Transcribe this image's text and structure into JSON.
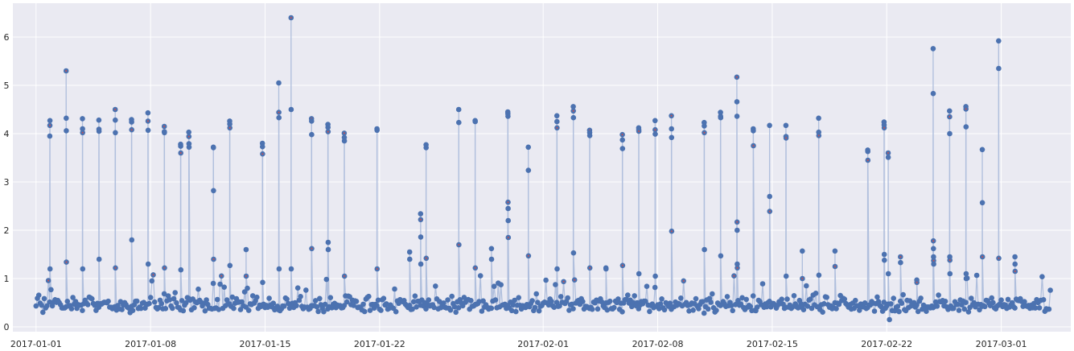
{
  "chart_data": {
    "type": "line",
    "style": {
      "background": "#eaeaf2",
      "grid_color": "#ffffff",
      "line_color": "#b0bfdd",
      "marker_color": "#4c72b0",
      "accent_marker_color": "#c44e52",
      "grid": true
    },
    "x_axis": {
      "type": "date",
      "range": [
        "2016-12-30T14:00",
        "2017-03-05T06:00"
      ],
      "ticks": [
        "2017-01-01",
        "2017-01-08",
        "2017-01-15",
        "2017-01-22",
        "2017-02-01",
        "2017-02-08",
        "2017-02-15",
        "2017-02-22",
        "2017-03-01"
      ]
    },
    "y_axis": {
      "range": [
        -0.1,
        6.7
      ],
      "ticks": [
        0,
        1,
        2,
        3,
        4,
        5,
        6
      ]
    },
    "baseline": {
      "start": "2017-01-01",
      "end": "2017-03-04",
      "step_hours": 2,
      "low": 0.28,
      "high": 0.72,
      "noise_points": 0.9
    },
    "spikes": [
      {
        "date": "2017-01-01T20:00",
        "values": [
          3.95,
          4.17,
          4.27,
          1.2
        ]
      },
      {
        "date": "2017-01-02T20:00",
        "values": [
          5.3,
          4.32,
          4.06,
          1.34
        ]
      },
      {
        "date": "2017-01-03T20:00",
        "values": [
          4.31,
          4.1,
          4.02,
          1.2
        ]
      },
      {
        "date": "2017-01-04T20:00",
        "values": [
          4.28,
          4.09,
          4.05,
          1.4
        ]
      },
      {
        "date": "2017-01-05T20:00",
        "values": [
          4.5,
          4.28,
          4.02,
          1.22
        ]
      },
      {
        "date": "2017-01-06T20:00",
        "values": [
          4.29,
          4.24,
          4.08,
          1.8
        ]
      },
      {
        "date": "2017-01-07T20:00",
        "values": [
          4.43,
          4.26,
          4.07,
          1.3
        ]
      },
      {
        "date": "2017-01-08T20:00",
        "values": [
          4.15,
          4.04,
          4.02,
          1.22
        ]
      },
      {
        "date": "2017-01-09T20:00",
        "values": [
          3.78,
          3.74,
          3.6,
          1.18
        ]
      },
      {
        "date": "2017-01-10T08:00",
        "values": [
          4.03,
          3.94,
          3.79,
          3.72
        ]
      },
      {
        "date": "2017-01-11T20:00",
        "values": [
          3.72,
          3.71,
          2.82,
          1.4
        ]
      },
      {
        "date": "2017-01-12T20:00",
        "values": [
          4.26,
          4.2,
          4.12,
          1.27
        ]
      },
      {
        "date": "2017-01-13T20:00",
        "values": [
          1.6,
          1.05
        ]
      },
      {
        "date": "2017-01-14T20:00",
        "values": [
          3.8,
          3.73,
          3.58,
          0.92
        ]
      },
      {
        "date": "2017-01-15T20:00",
        "values": [
          5.05,
          4.44,
          4.33,
          1.2
        ]
      },
      {
        "date": "2017-01-16T14:00",
        "values": [
          6.4,
          4.5,
          1.2
        ]
      },
      {
        "date": "2017-01-17T20:00",
        "values": [
          4.31,
          4.26,
          3.98,
          1.62
        ]
      },
      {
        "date": "2017-01-18T20:00",
        "values": [
          4.19,
          4.13,
          4.04,
          1.75,
          1.6
        ]
      },
      {
        "date": "2017-01-19T20:00",
        "values": [
          4.01,
          3.92,
          3.85,
          1.05
        ]
      },
      {
        "date": "2017-01-21T20:00",
        "values": [
          4.1,
          4.07,
          1.2
        ]
      },
      {
        "date": "2017-01-23T20:00",
        "values": [
          1.55,
          1.4
        ]
      },
      {
        "date": "2017-01-24T12:00",
        "values": [
          2.34,
          2.22,
          1.86,
          1.3
        ]
      },
      {
        "date": "2017-01-24T20:00",
        "values": [
          3.77,
          3.71,
          1.42
        ]
      },
      {
        "date": "2017-01-26T20:00",
        "values": [
          4.5,
          4.23,
          1.7
        ]
      },
      {
        "date": "2017-01-27T20:00",
        "values": [
          4.27,
          4.25,
          1.22
        ]
      },
      {
        "date": "2017-01-28T20:00",
        "values": [
          1.62,
          1.4
        ]
      },
      {
        "date": "2017-01-29T20:00",
        "values": [
          4.45,
          4.41,
          4.36,
          2.58,
          2.45,
          2.2,
          1.85
        ]
      },
      {
        "date": "2017-01-31T02:00",
        "values": [
          3.72,
          3.24,
          1.47
        ]
      },
      {
        "date": "2017-02-01T20:00",
        "values": [
          4.37,
          4.25,
          4.12,
          1.2
        ]
      },
      {
        "date": "2017-02-02T20:00",
        "values": [
          4.56,
          4.47,
          4.33,
          1.53
        ]
      },
      {
        "date": "2017-02-03T20:00",
        "values": [
          4.07,
          4.02,
          3.96,
          1.22
        ]
      },
      {
        "date": "2017-02-04T20:00",
        "values": [
          1.22,
          1.2
        ]
      },
      {
        "date": "2017-02-05T20:00",
        "values": [
          3.98,
          3.87,
          3.69,
          1.27
        ]
      },
      {
        "date": "2017-02-06T20:00",
        "values": [
          4.12,
          4.08,
          4.05,
          1.1
        ]
      },
      {
        "date": "2017-02-07T20:00",
        "values": [
          4.27,
          4.08,
          3.99,
          1.05
        ]
      },
      {
        "date": "2017-02-08T20:00",
        "values": [
          4.37,
          4.1,
          3.92,
          1.98
        ]
      },
      {
        "date": "2017-02-10T20:00",
        "values": [
          4.23,
          4.16,
          4.02,
          1.6
        ]
      },
      {
        "date": "2017-02-11T20:00",
        "values": [
          4.44,
          4.36,
          4.33,
          1.47
        ]
      },
      {
        "date": "2017-02-12T20:00",
        "values": [
          5.17,
          4.66,
          4.36,
          2.17,
          2.0,
          1.3,
          1.22
        ]
      },
      {
        "date": "2017-02-13T20:00",
        "values": [
          4.1,
          4.06,
          3.75
        ]
      },
      {
        "date": "2017-02-14T20:00",
        "values": [
          4.17,
          2.7,
          2.39
        ]
      },
      {
        "date": "2017-02-15T20:00",
        "values": [
          4.17,
          3.94,
          3.91,
          1.05
        ]
      },
      {
        "date": "2017-02-16T20:00",
        "values": [
          1.57,
          1.0
        ]
      },
      {
        "date": "2017-02-17T20:00",
        "values": [
          4.32,
          4.03,
          3.96,
          1.07
        ]
      },
      {
        "date": "2017-02-18T20:00",
        "values": [
          1.57,
          1.25
        ]
      },
      {
        "date": "2017-02-20T20:00",
        "values": [
          3.66,
          3.63,
          3.45
        ]
      },
      {
        "date": "2017-02-21T20:00",
        "values": [
          4.24,
          4.18,
          4.12,
          1.5,
          1.38
        ]
      },
      {
        "date": "2017-02-22T02:00",
        "values": [
          3.6,
          3.51,
          1.1
        ]
      },
      {
        "date": "2017-02-22T20:00",
        "values": [
          1.45,
          1.33
        ]
      },
      {
        "date": "2017-02-23T20:00",
        "values": [
          0.97,
          0.92
        ]
      },
      {
        "date": "2017-02-24T20:00",
        "values": [
          5.76,
          4.83,
          1.78,
          1.62,
          1.45,
          1.37,
          1.3
        ]
      },
      {
        "date": "2017-02-25T20:00",
        "values": [
          4.47,
          4.35,
          4.0,
          1.45,
          1.38,
          1.1
        ]
      },
      {
        "date": "2017-02-26T20:00",
        "values": [
          4.56,
          4.51,
          4.14,
          1.1,
          1.0
        ]
      },
      {
        "date": "2017-02-27T20:00",
        "values": [
          3.67,
          2.57,
          1.45
        ]
      },
      {
        "date": "2017-02-28T20:00",
        "values": [
          5.92,
          5.35,
          1.42
        ]
      },
      {
        "date": "2017-03-01T20:00",
        "values": [
          1.45,
          1.3,
          1.15
        ]
      }
    ],
    "dip_date": "2017-02-22T04:00",
    "dip_value": 0.15
  }
}
